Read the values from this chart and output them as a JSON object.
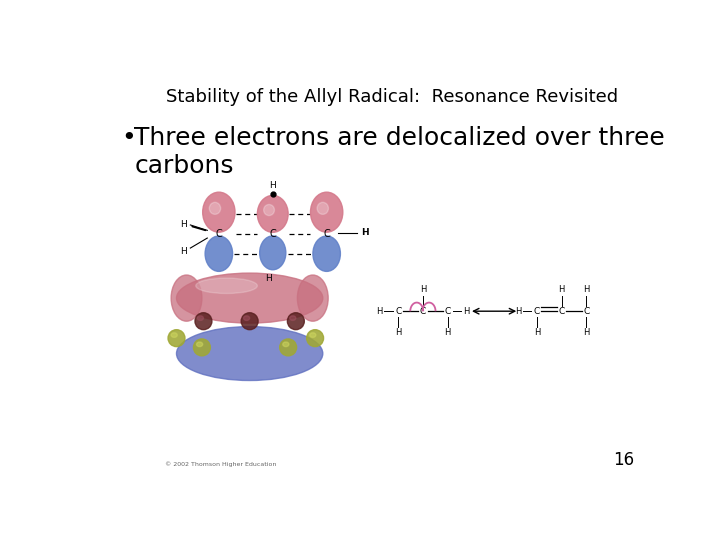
{
  "title": "Stability of the Allyl Radical:  Resonance Revisited",
  "bullet_text": "Three electrons are delocalized over three\ncarbons",
  "page_number": "16",
  "bg_color": "#ffffff",
  "title_fontsize": 13,
  "bullet_fontsize": 18,
  "page_num_fontsize": 12,
  "copyright": "© 2002 Thomson Higher Education"
}
